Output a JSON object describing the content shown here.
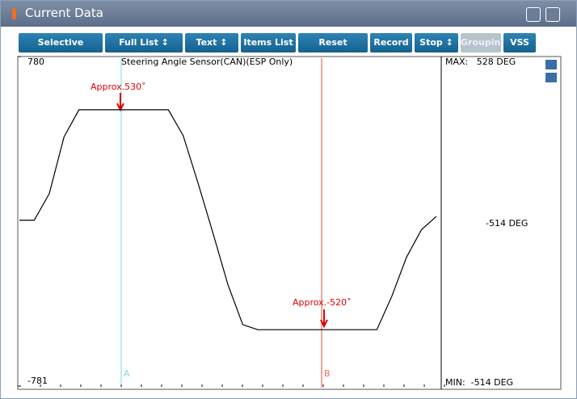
{
  "window": {
    "title": "Current Data"
  },
  "toolbar": {
    "buttons": [
      "Selective Display ↕",
      "Full List ↕",
      "Text ↕",
      "Items List ↕",
      "Reset Min.Max",
      "Record",
      "Stop ↕",
      "Grouping",
      "VSS"
    ]
  },
  "chart_data": {
    "type": "line",
    "title": "Steering Angle Sensor(CAN)(ESP Only)",
    "ylim": [
      -781,
      780
    ],
    "yticks": [
      -781,
      780
    ],
    "series": [
      {
        "name": "Steering Angle Sensor(CAN)(ESP Only)",
        "color": "#000000",
        "values": [
          5,
          5,
          130,
          400,
          528,
          528,
          528,
          528,
          528,
          528,
          528,
          405,
          180,
          -57,
          -300,
          -490,
          -514,
          -514,
          -514,
          -514,
          -514,
          -514,
          -514,
          -514,
          -514,
          -357,
          -170,
          -40,
          23
        ]
      }
    ],
    "annotations": [
      "Approx.530˚",
      "Approx.-520˚"
    ],
    "cursors": [
      "A",
      "B"
    ],
    "max_label": "MAX:   528 DEG",
    "current_label": "-514 DEG",
    "min_label": "MIN:  -514 DEG"
  }
}
